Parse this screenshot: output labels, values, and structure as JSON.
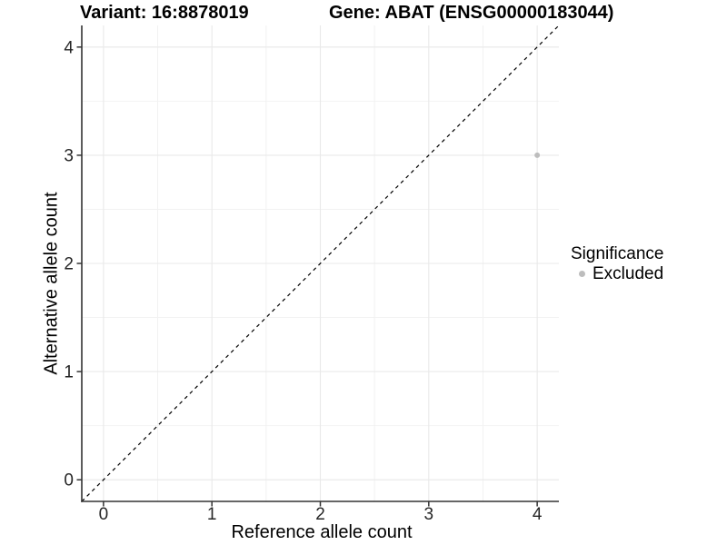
{
  "chart_data": {
    "type": "scatter",
    "title_left": "Variant: 16:8878019",
    "title_right": "Gene: ABAT (ENSG00000183044)",
    "xlabel": "Reference allele count",
    "ylabel": "Alternative allele count",
    "xlim": [
      -0.2,
      4.2
    ],
    "ylim": [
      -0.2,
      4.2
    ],
    "x_ticks": [
      0,
      1,
      2,
      3,
      4
    ],
    "y_ticks": [
      0,
      1,
      2,
      3,
      4
    ],
    "x_tick_labels": [
      "0",
      "1",
      "2",
      "3",
      "4"
    ],
    "y_tick_labels": [
      "0",
      "1",
      "2",
      "3",
      "4"
    ],
    "minor_breaks": [
      0.5,
      1.5,
      2.5,
      3.5
    ],
    "grid": true,
    "points": [
      {
        "x": 4,
        "y": 3,
        "series": "Excluded"
      }
    ],
    "reference_line": {
      "type": "identity",
      "slope": 1,
      "intercept": 0,
      "style": "dashed"
    },
    "legend": {
      "title": "Significance",
      "position": "right",
      "items": [
        {
          "label": "Excluded",
          "color": "#bdbdbd"
        }
      ]
    }
  },
  "colors": {
    "background": "#ffffff",
    "grid_major": "#e9e9e9",
    "grid_minor": "#f2f2f2",
    "axis": "#333333",
    "tick_text": "#262626",
    "title_text": "#000000",
    "point": "#bdbdbd",
    "reference_line": "#000000"
  }
}
